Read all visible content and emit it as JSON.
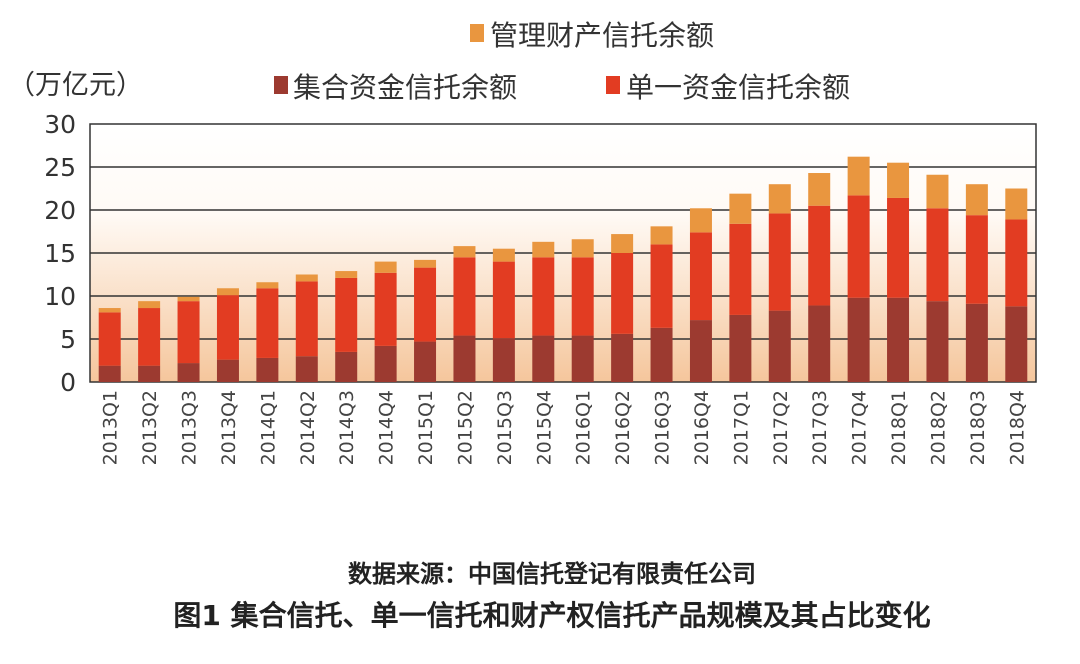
{
  "chart_data": {
    "type": "bar",
    "stacked": true,
    "ylabel": "（万亿元）",
    "ylim": [
      0,
      30
    ],
    "yticks": [
      0,
      5,
      10,
      15,
      20,
      25,
      30
    ],
    "grid": true,
    "legend_placement": "top",
    "categories": [
      "2013Q1",
      "2013Q2",
      "2013Q3",
      "2013Q4",
      "2014Q1",
      "2014Q2",
      "2014Q3",
      "2014Q4",
      "2015Q1",
      "2015Q2",
      "2015Q3",
      "2015Q4",
      "2016Q1",
      "2016Q2",
      "2016Q3",
      "2016Q4",
      "2017Q1",
      "2017Q2",
      "2017Q3",
      "2017Q4",
      "2018Q1",
      "2018Q2",
      "2018Q3",
      "2018Q4"
    ],
    "series": [
      {
        "name": "集合资金信托余额",
        "color": "#9c3a30",
        "values": [
          1.9,
          1.9,
          2.2,
          2.6,
          2.8,
          3.0,
          3.5,
          4.2,
          4.7,
          5.4,
          5.1,
          5.4,
          5.4,
          5.6,
          6.3,
          7.2,
          7.8,
          8.3,
          8.9,
          9.8,
          9.8,
          9.4,
          9.1,
          8.8
        ]
      },
      {
        "name": "单一资金信托余额",
        "color": "#e23c22",
        "values": [
          6.2,
          6.7,
          7.2,
          7.5,
          8.1,
          8.7,
          8.6,
          8.5,
          8.6,
          9.1,
          8.9,
          9.1,
          9.1,
          9.4,
          9.7,
          10.2,
          10.6,
          11.3,
          11.6,
          11.9,
          11.6,
          10.8,
          10.3,
          10.1
        ]
      },
      {
        "name": "管理财产信托余额",
        "color": "#e9963f",
        "values": [
          0.5,
          0.8,
          0.5,
          0.8,
          0.7,
          0.8,
          0.8,
          1.3,
          0.9,
          1.3,
          1.5,
          1.8,
          2.1,
          2.2,
          2.1,
          2.8,
          3.5,
          3.4,
          3.8,
          4.5,
          4.1,
          3.9,
          3.6,
          3.6
        ]
      }
    ],
    "source": "数据来源：中国信托登记有限责任公司",
    "caption": "图1  集合信托、单一信托和财产权信托产品规模及其占比变化"
  }
}
